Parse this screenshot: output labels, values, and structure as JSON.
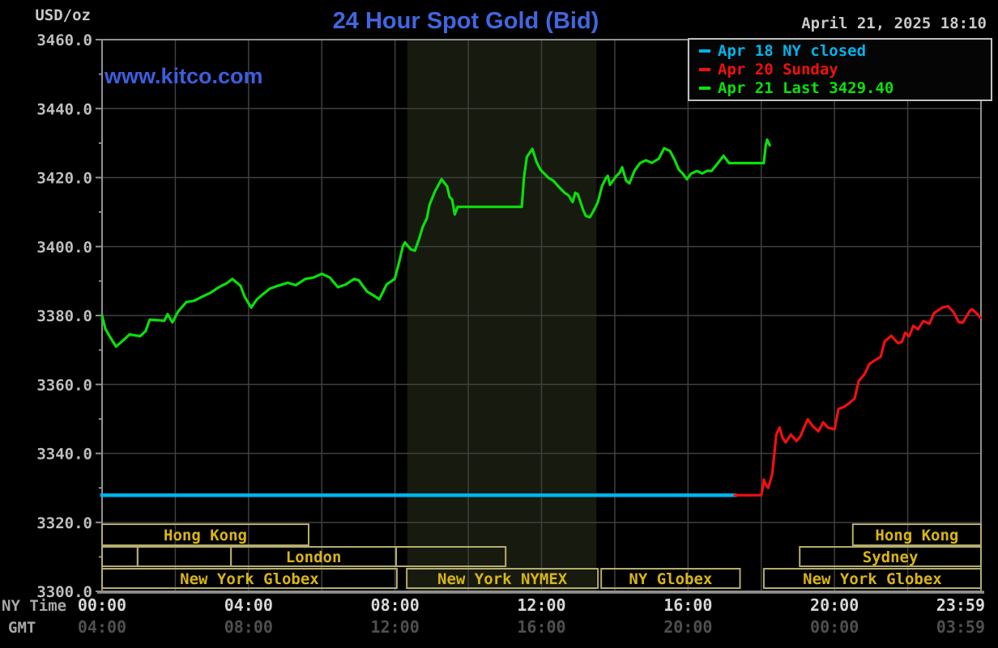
{
  "header": {
    "unit_label": "USD/oz",
    "title": "24 Hour Spot Gold (Bid)",
    "title_color": "#4266e0",
    "watermark": "www.kitco.com",
    "watermark_color": "#3d5ede",
    "timestamp": "April 21, 2025 18:10"
  },
  "legend": {
    "items": [
      {
        "label": "Apr 18 NY closed",
        "color": "#00b4ec"
      },
      {
        "label": "Apr 20 Sunday",
        "color": "#f01010"
      },
      {
        "label": "Apr 21 Last 3429.40",
        "color": "#0ae00a"
      }
    ]
  },
  "axes": {
    "ny_time_label": "NY Time",
    "gmt_label": "GMT",
    "ticks": [
      {
        "hour": 0,
        "ny": "00:00",
        "gmt": "04:00"
      },
      {
        "hour": 4,
        "ny": "04:00",
        "gmt": "08:00"
      },
      {
        "hour": 8,
        "ny": "08:00",
        "gmt": "12:00"
      },
      {
        "hour": 12,
        "ny": "12:00",
        "gmt": "16:00"
      },
      {
        "hour": 16,
        "ny": "16:00",
        "gmt": "20:00"
      },
      {
        "hour": 20,
        "ny": "20:00",
        "gmt": "00:00"
      },
      {
        "hour": 23.983,
        "ny": "23:59",
        "gmt": "03:59"
      }
    ]
  },
  "chart_data": {
    "type": "line",
    "title": "24 Hour Spot Gold (Bid)",
    "xlabel": "NY Time (hours 00:00-23:59)",
    "ylabel": "USD/oz",
    "ylim": [
      3300,
      3460
    ],
    "y_tick_step": 20,
    "x_gridline_step_hours": 2,
    "grid": true,
    "legend_position": "top-right",
    "last_price": 3429.4,
    "session_shade": {
      "start_hour": 8.333,
      "end_hour": 13.5,
      "color": "#171a0e",
      "name": "NYMEX floor session"
    },
    "colors": {
      "grid": "#3f3f3f",
      "border": "#909090",
      "y_label": "#bebebe",
      "ny_time": "#d8d8d8",
      "axis_caption": "#a8a8a8",
      "gmt_time": "#4f4f4f",
      "session_border": "#b5ad6e",
      "session_text": "#d9b517"
    },
    "sessions": [
      {
        "row": 1,
        "label": "Hong Kong",
        "start": 0,
        "end": 5.64
      },
      {
        "row": 1,
        "label": "Hong Kong",
        "start": 20.5,
        "end": 24
      },
      {
        "row": 2,
        "label": "",
        "start": 0,
        "end": 0.97
      },
      {
        "row": 2,
        "label": "",
        "start": 0.97,
        "end": 3.52
      },
      {
        "row": 2,
        "label": "London",
        "start": 3.52,
        "end": 8.03
      },
      {
        "row": 2,
        "label": "",
        "start": 8.03,
        "end": 11.02
      },
      {
        "row": 2,
        "label": "Sydney",
        "start": 19.05,
        "end": 24
      },
      {
        "row": 3,
        "label": "New York Globex",
        "start": 0,
        "end": 8.05
      },
      {
        "row": 3,
        "label": "New York NYMEX",
        "start": 8.32,
        "end": 13.54
      },
      {
        "row": 3,
        "label": "NY Globex",
        "start": 13.63,
        "end": 17.42
      },
      {
        "row": 3,
        "label": "New York Globex",
        "start": 18.07,
        "end": 24
      }
    ],
    "series": [
      {
        "name": "Apr 18 NY closed",
        "color": "#00b4ec",
        "width": 4.5,
        "points": [
          [
            0,
            3327.9
          ],
          [
            17.28,
            3327.9
          ]
        ]
      },
      {
        "name": "Apr 20 Sunday",
        "color": "#f01010",
        "width": 3.2,
        "points": [
          [
            17.28,
            3327.9
          ],
          [
            18.0,
            3327.9
          ],
          [
            18.05,
            3330.5
          ],
          [
            18.07,
            3332.4
          ],
          [
            18.12,
            3331.0
          ],
          [
            18.19,
            3330.0
          ],
          [
            18.3,
            3334.0
          ],
          [
            18.41,
            3345.5
          ],
          [
            18.5,
            3347.5
          ],
          [
            18.58,
            3344.5
          ],
          [
            18.67,
            3343.2
          ],
          [
            18.81,
            3345.5
          ],
          [
            18.96,
            3343.6
          ],
          [
            19.07,
            3345.0
          ],
          [
            19.18,
            3347.8
          ],
          [
            19.27,
            3349.9
          ],
          [
            19.4,
            3348.0
          ],
          [
            19.56,
            3346.4
          ],
          [
            19.69,
            3349.0
          ],
          [
            19.82,
            3347.5
          ],
          [
            20.0,
            3347.0
          ],
          [
            20.11,
            3352.9
          ],
          [
            20.26,
            3353.5
          ],
          [
            20.38,
            3354.4
          ],
          [
            20.55,
            3355.9
          ],
          [
            20.66,
            3361.0
          ],
          [
            20.82,
            3363.0
          ],
          [
            20.95,
            3365.9
          ],
          [
            21.1,
            3367.0
          ],
          [
            21.26,
            3368.0
          ],
          [
            21.37,
            3372.5
          ],
          [
            21.55,
            3374.1
          ],
          [
            21.73,
            3372.0
          ],
          [
            21.84,
            3372.3
          ],
          [
            21.93,
            3375.0
          ],
          [
            22.04,
            3374.0
          ],
          [
            22.15,
            3377.0
          ],
          [
            22.28,
            3376.0
          ],
          [
            22.43,
            3378.4
          ],
          [
            22.59,
            3377.6
          ],
          [
            22.72,
            3380.7
          ],
          [
            22.94,
            3382.3
          ],
          [
            23.1,
            3382.7
          ],
          [
            23.25,
            3381.0
          ],
          [
            23.39,
            3378.1
          ],
          [
            23.5,
            3377.9
          ],
          [
            23.7,
            3381.4
          ],
          [
            23.76,
            3381.8
          ],
          [
            23.92,
            3380.2
          ],
          [
            23.98,
            3379.4
          ]
        ]
      },
      {
        "name": "Apr 21 Last 3429.40",
        "color": "#0ae00a",
        "width": 3.2,
        "points": [
          [
            0,
            3380.0
          ],
          [
            0.09,
            3376.1
          ],
          [
            0.2,
            3374.1
          ],
          [
            0.38,
            3371.0
          ],
          [
            0.6,
            3373.0
          ],
          [
            0.75,
            3374.5
          ],
          [
            1.04,
            3374.0
          ],
          [
            1.19,
            3375.5
          ],
          [
            1.3,
            3378.8
          ],
          [
            1.7,
            3378.5
          ],
          [
            1.79,
            3380.4
          ],
          [
            1.92,
            3378.0
          ],
          [
            2.08,
            3381.2
          ],
          [
            2.3,
            3383.9
          ],
          [
            2.52,
            3384.3
          ],
          [
            2.74,
            3385.5
          ],
          [
            2.96,
            3386.6
          ],
          [
            3.19,
            3388.2
          ],
          [
            3.41,
            3389.4
          ],
          [
            3.56,
            3390.6
          ],
          [
            3.78,
            3388.6
          ],
          [
            3.89,
            3385.5
          ],
          [
            4.07,
            3382.3
          ],
          [
            4.23,
            3384.7
          ],
          [
            4.36,
            3385.9
          ],
          [
            4.58,
            3387.8
          ],
          [
            4.8,
            3388.6
          ],
          [
            5.07,
            3389.5
          ],
          [
            5.29,
            3388.8
          ],
          [
            5.55,
            3390.6
          ],
          [
            5.77,
            3391.0
          ],
          [
            6.0,
            3392.1
          ],
          [
            6.22,
            3391.0
          ],
          [
            6.44,
            3388.2
          ],
          [
            6.66,
            3389.0
          ],
          [
            6.88,
            3390.6
          ],
          [
            7.01,
            3390.2
          ],
          [
            7.23,
            3387.0
          ],
          [
            7.46,
            3385.5
          ],
          [
            7.57,
            3384.7
          ],
          [
            7.77,
            3389.0
          ],
          [
            7.99,
            3390.6
          ],
          [
            8.1,
            3395.0
          ],
          [
            8.21,
            3400.0
          ],
          [
            8.27,
            3401.2
          ],
          [
            8.43,
            3399.2
          ],
          [
            8.54,
            3398.8
          ],
          [
            8.65,
            3402.0
          ],
          [
            8.76,
            3405.8
          ],
          [
            8.87,
            3408.2
          ],
          [
            8.94,
            3412.1
          ],
          [
            9.09,
            3416.0
          ],
          [
            9.27,
            3419.5
          ],
          [
            9.42,
            3417.5
          ],
          [
            9.49,
            3414.4
          ],
          [
            9.56,
            3413.6
          ],
          [
            9.63,
            3409.3
          ],
          [
            9.71,
            3411.5
          ],
          [
            11.46,
            3411.5
          ],
          [
            11.52,
            3420.0
          ],
          [
            11.6,
            3426.0
          ],
          [
            11.75,
            3428.3
          ],
          [
            11.86,
            3424.6
          ],
          [
            11.97,
            3422.3
          ],
          [
            12.08,
            3421.1
          ],
          [
            12.19,
            3419.9
          ],
          [
            12.32,
            3419.1
          ],
          [
            12.48,
            3417.2
          ],
          [
            12.63,
            3415.6
          ],
          [
            12.74,
            3414.8
          ],
          [
            12.85,
            3412.9
          ],
          [
            12.92,
            3415.6
          ],
          [
            12.99,
            3415.2
          ],
          [
            13.14,
            3410.5
          ],
          [
            13.21,
            3408.9
          ],
          [
            13.32,
            3408.5
          ],
          [
            13.43,
            3410.5
          ],
          [
            13.54,
            3412.9
          ],
          [
            13.65,
            3417.5
          ],
          [
            13.76,
            3419.9
          ],
          [
            13.81,
            3420.5
          ],
          [
            13.87,
            3417.9
          ],
          [
            14.03,
            3420.3
          ],
          [
            14.14,
            3421.5
          ],
          [
            14.2,
            3423.0
          ],
          [
            14.31,
            3419.1
          ],
          [
            14.4,
            3418.3
          ],
          [
            14.54,
            3422.0
          ],
          [
            14.69,
            3424.2
          ],
          [
            14.85,
            3425.0
          ],
          [
            15.02,
            3424.3
          ],
          [
            15.2,
            3425.5
          ],
          [
            15.35,
            3428.5
          ],
          [
            15.51,
            3427.7
          ],
          [
            15.64,
            3425.0
          ],
          [
            15.75,
            3422.3
          ],
          [
            15.86,
            3421.1
          ],
          [
            15.97,
            3419.5
          ],
          [
            16.08,
            3421.1
          ],
          [
            16.24,
            3421.9
          ],
          [
            16.39,
            3421.2
          ],
          [
            16.53,
            3422.0
          ],
          [
            16.64,
            3421.9
          ],
          [
            16.8,
            3424.0
          ],
          [
            16.97,
            3426.3
          ],
          [
            17.12,
            3424.2
          ],
          [
            18.07,
            3424.2
          ],
          [
            18.12,
            3429.2
          ],
          [
            18.16,
            3431.0
          ],
          [
            18.23,
            3429.4
          ]
        ]
      }
    ]
  }
}
